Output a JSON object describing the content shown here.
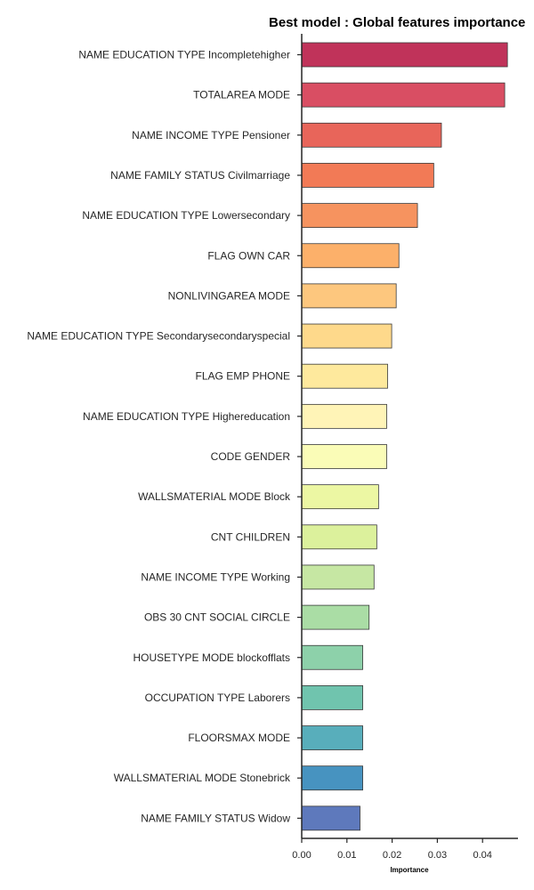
{
  "chart_data": {
    "type": "bar",
    "orientation": "horizontal",
    "title": "Best model : Global features importance",
    "xlabel": "Importance",
    "ylabel": "",
    "xlim": [
      0,
      0.047
    ],
    "x_ticks": [
      "0.00",
      "0.01",
      "0.02",
      "0.03",
      "0.04"
    ],
    "grid": false,
    "legend": "none",
    "categories": [
      "NAME EDUCATION TYPE Incompletehigher",
      "TOTALAREA MODE",
      "NAME INCOME TYPE Pensioner",
      "NAME FAMILY STATUS Civilmarriage",
      "NAME EDUCATION TYPE Lowersecondary",
      "FLAG OWN CAR",
      "NONLIVINGAREA MODE",
      "NAME EDUCATION TYPE Secondarysecondaryspecial",
      "FLAG EMP PHONE",
      "NAME EDUCATION TYPE Highereducation",
      "CODE GENDER",
      "WALLSMATERIAL MODE Block",
      "CNT CHILDREN",
      "NAME INCOME TYPE Working",
      "OBS 30 CNT SOCIAL CIRCLE",
      "HOUSETYPE MODE blockofflats",
      "OCCUPATION TYPE Laborers",
      "FLOORSMAX MODE",
      "WALLSMATERIAL MODE Stonebrick",
      "NAME FAMILY STATUS Widow"
    ],
    "values": [
      0.0455,
      0.0449,
      0.0309,
      0.0292,
      0.0256,
      0.0215,
      0.0209,
      0.0199,
      0.019,
      0.0188,
      0.0188,
      0.017,
      0.0166,
      0.016,
      0.0149,
      0.0135,
      0.0135,
      0.0135,
      0.0135,
      0.0129
    ],
    "colors": [
      "#c0335a",
      "#d94e63",
      "#e8655a",
      "#f27a56",
      "#f6935f",
      "#fcb06a",
      "#fdc77e",
      "#fed98b",
      "#fee99d",
      "#fff4b7",
      "#fafcb7",
      "#ecf7a3",
      "#dcf19c",
      "#c6e7a3",
      "#aadda5",
      "#8dd1aa",
      "#70c4ae",
      "#58aebb",
      "#4793c0",
      "#5e79bc"
    ]
  }
}
